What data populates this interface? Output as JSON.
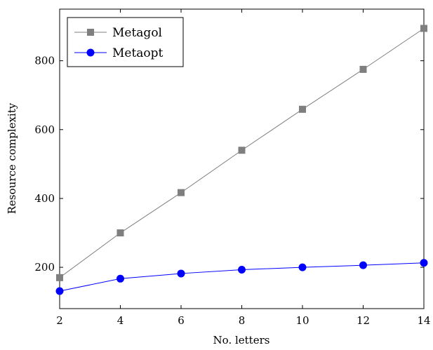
{
  "chart_data": {
    "type": "line",
    "title": "",
    "xlabel": "No. letters",
    "ylabel": "Resource complexity",
    "x": [
      2,
      4,
      6,
      8,
      10,
      12,
      14
    ],
    "xlim": [
      2,
      14
    ],
    "ylim": [
      80,
      950
    ],
    "xticks": [
      "2",
      "4",
      "6",
      "8",
      "10",
      "12",
      "14"
    ],
    "yticks": [
      "200",
      "400",
      "600",
      "800"
    ],
    "grid": false,
    "legend_position": "top-left",
    "series": [
      {
        "name": "Metagol",
        "values": [
          170,
          300,
          417,
          540,
          659,
          775,
          894
        ],
        "color": "#7f7f7f",
        "marker": "square"
      },
      {
        "name": "Metaopt",
        "values": [
          131,
          167,
          182,
          193,
          200,
          206,
          213
        ],
        "color": "#0000ff",
        "marker": "circle"
      }
    ]
  }
}
